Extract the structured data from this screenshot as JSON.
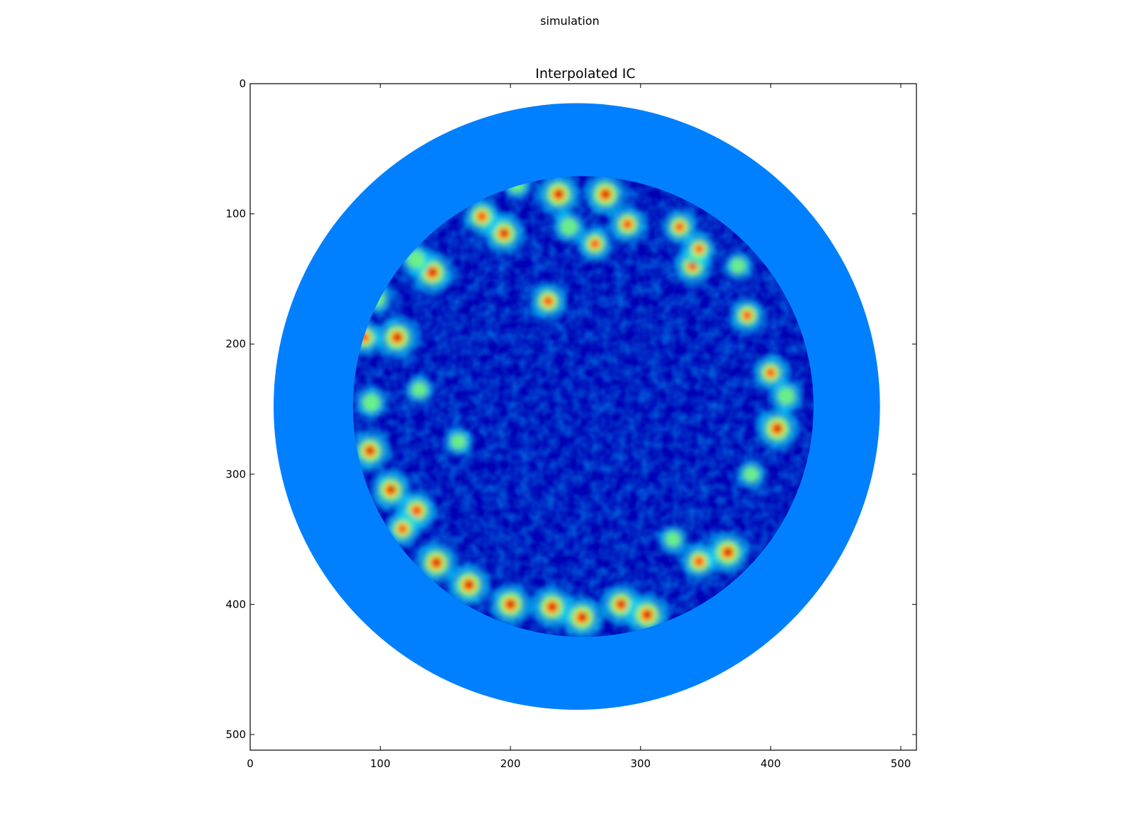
{
  "figure": {
    "suptitle": "simulation"
  },
  "chart_data": {
    "type": "heatmap",
    "title": "Interpolated IC",
    "xlabel": "",
    "ylabel": "",
    "xlim": [
      0,
      512
    ],
    "ylim": [
      512,
      0
    ],
    "xticks": [
      0,
      100,
      200,
      300,
      400,
      500
    ],
    "yticks": [
      0,
      100,
      200,
      300,
      400,
      500
    ],
    "image_size": [
      512,
      512
    ],
    "colormap": "jet",
    "colors": {
      "outer_ring": "#0080ff",
      "inner_background": "#0000b4",
      "low": "#00008f",
      "mid": "#00e4ff",
      "high": "#ff2000",
      "peak": "#a00000"
    },
    "regions": [
      {
        "name": "outer-disk",
        "center": [
          251,
          248
        ],
        "radius": 233,
        "value": 0.3
      },
      {
        "name": "inner-disk",
        "center": [
          256,
          248
        ],
        "radius": 177,
        "value": 0.12
      }
    ],
    "hotspots": [
      {
        "x": 237,
        "y": 85,
        "v": 1.0
      },
      {
        "x": 273,
        "y": 85,
        "v": 1.0
      },
      {
        "x": 195,
        "y": 115,
        "v": 0.95
      },
      {
        "x": 178,
        "y": 102,
        "v": 0.85
      },
      {
        "x": 140,
        "y": 145,
        "v": 1.0
      },
      {
        "x": 127,
        "y": 135,
        "v": 0.7
      },
      {
        "x": 113,
        "y": 195,
        "v": 1.0
      },
      {
        "x": 88,
        "y": 195,
        "v": 0.8
      },
      {
        "x": 97,
        "y": 165,
        "v": 0.7
      },
      {
        "x": 229,
        "y": 167,
        "v": 0.85
      },
      {
        "x": 330,
        "y": 110,
        "v": 0.8
      },
      {
        "x": 340,
        "y": 140,
        "v": 0.85
      },
      {
        "x": 345,
        "y": 127,
        "v": 0.75
      },
      {
        "x": 382,
        "y": 178,
        "v": 0.8
      },
      {
        "x": 405,
        "y": 265,
        "v": 1.0
      },
      {
        "x": 400,
        "y": 222,
        "v": 0.8
      },
      {
        "x": 385,
        "y": 300,
        "v": 0.6
      },
      {
        "x": 92,
        "y": 282,
        "v": 0.95
      },
      {
        "x": 93,
        "y": 245,
        "v": 0.7
      },
      {
        "x": 108,
        "y": 312,
        "v": 0.95
      },
      {
        "x": 128,
        "y": 328,
        "v": 0.9
      },
      {
        "x": 117,
        "y": 342,
        "v": 0.8
      },
      {
        "x": 143,
        "y": 368,
        "v": 1.0
      },
      {
        "x": 168,
        "y": 385,
        "v": 1.0
      },
      {
        "x": 200,
        "y": 400,
        "v": 1.0
      },
      {
        "x": 232,
        "y": 402,
        "v": 1.0
      },
      {
        "x": 255,
        "y": 410,
        "v": 1.0
      },
      {
        "x": 285,
        "y": 400,
        "v": 0.95
      },
      {
        "x": 305,
        "y": 408,
        "v": 1.0
      },
      {
        "x": 345,
        "y": 367,
        "v": 0.85
      },
      {
        "x": 367,
        "y": 360,
        "v": 1.0
      },
      {
        "x": 375,
        "y": 140,
        "v": 0.6
      },
      {
        "x": 290,
        "y": 108,
        "v": 0.85
      },
      {
        "x": 265,
        "y": 123,
        "v": 0.8
      },
      {
        "x": 245,
        "y": 110,
        "v": 0.7
      },
      {
        "x": 160,
        "y": 275,
        "v": 0.6
      },
      {
        "x": 130,
        "y": 235,
        "v": 0.6
      },
      {
        "x": 325,
        "y": 350,
        "v": 0.6
      },
      {
        "x": 205,
        "y": 78,
        "v": 0.6
      },
      {
        "x": 412,
        "y": 240,
        "v": 0.7
      }
    ]
  }
}
